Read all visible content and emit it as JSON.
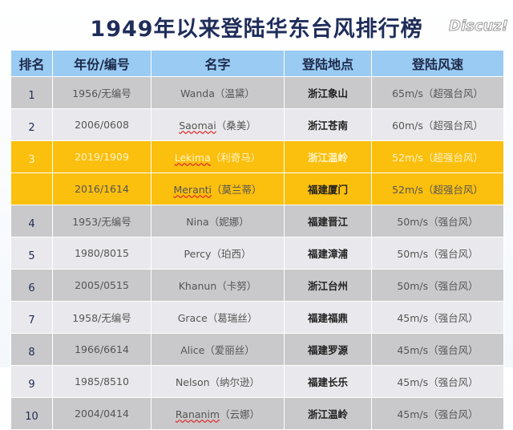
{
  "title": "1949年以来登陆华东台风排行榜",
  "headers": [
    "排名",
    "年份/编号",
    "名字",
    "登陆地点",
    "登陆风速"
  ],
  "rows": [
    {
      "rank": "1",
      "year": "1956/无编号",
      "name": "Wanda（温黛）",
      "place": "浙江象山",
      "speed": "65m/s（超强台风）"
    },
    {
      "rank": "2",
      "year": "2006/0608",
      "name": "Saomai（桑美）",
      "place": "浙江苍南",
      "speed": "60m/s（超强台风）"
    },
    {
      "rank": "3",
      "year": "2019/1909",
      "name": "Lekima（利奇马）",
      "place": "浙江温岭",
      "speed": "52m/s（超强台风）"
    },
    {
      "rank": "",
      "year": "2016/1614",
      "name": "Meranti（莫兰蒂）",
      "place": "福建厦门",
      "speed": "52m/s（超强台风）"
    },
    {
      "rank": "4",
      "year": "1953/无编号",
      "name": "Nina（妮娜）",
      "place": "福建晋江",
      "speed": "50m/s（强台风）"
    },
    {
      "rank": "5",
      "year": "1980/8015",
      "name": "Percy（珀西）",
      "place": "福建漳浦",
      "speed": "50m/s（强台风）"
    },
    {
      "rank": "6",
      "year": "2005/0515",
      "name": "Khanun（卡努）",
      "place": "浙江台州",
      "speed": "50m/s（强台风）"
    },
    {
      "rank": "7",
      "year": "1958/无编号",
      "name": "Grace（葛瑞丝）",
      "place": "福建福鼎",
      "speed": "45m/s（强台风）"
    },
    {
      "rank": "8",
      "year": "1966/6614",
      "name": "Alice（爱丽丝）",
      "place": "福建罗源",
      "speed": "45m/s（强台风）"
    },
    {
      "rank": "9",
      "year": "1985/8510",
      "name": "Nelson（纳尔逊）",
      "place": "福建长乐",
      "speed": "45m/s（强台风）"
    },
    {
      "rank": "10",
      "year": "2004/0414",
      "name": "Rananim（云娜）",
      "place": "浙江温岭",
      "speed": "45m/s（强台风）"
    }
  ],
  "watermark": "Discuz!",
  "colors": {
    "header": "#9acbf3",
    "rank": "#92c7f0",
    "highlight": "#fbbf0e",
    "title": "#1f2d5a"
  }
}
